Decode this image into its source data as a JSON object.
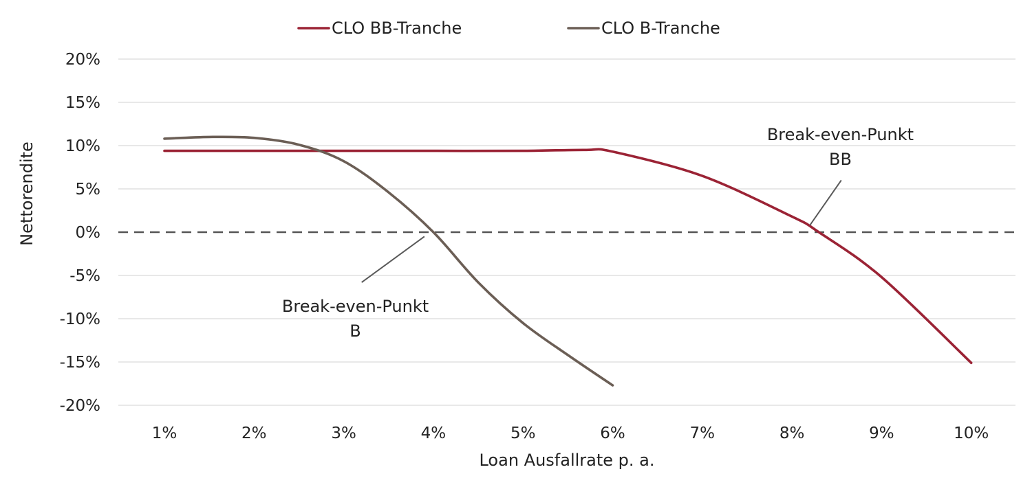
{
  "chart_data": {
    "type": "line",
    "title": "",
    "xlabel": "Loan Ausfallrate p. a.",
    "ylabel": "Nettorendite",
    "categories": [
      "1%",
      "2%",
      "3%",
      "4%",
      "5%",
      "6%",
      "7%",
      "8%",
      "9%",
      "10%"
    ],
    "x_values": [
      1,
      2,
      3,
      4,
      5,
      6,
      7,
      8,
      9,
      10
    ],
    "ylim": [
      -20,
      20
    ],
    "y_ticks": [
      20,
      15,
      10,
      5,
      0,
      -5,
      -10,
      -15,
      -20
    ],
    "y_tick_labels": [
      "20%",
      "15%",
      "10%",
      "5%",
      "0%",
      "-5%",
      "-10%",
      "-15%",
      "-20%"
    ],
    "grid": true,
    "reference_line": {
      "y": 0,
      "style": "dashed",
      "color": "#595959"
    },
    "legend_position": "top-center",
    "series": [
      {
        "name": "CLO BB-Tranche",
        "color": "#9b2335",
        "x": [
          1,
          2,
          3,
          4,
          5,
          5.7,
          6,
          7,
          8,
          8.3,
          9,
          10
        ],
        "y": [
          9.4,
          9.4,
          9.4,
          9.4,
          9.4,
          9.5,
          9.3,
          6.5,
          1.8,
          0,
          -5.2,
          -15.1
        ]
      },
      {
        "name": "CLO B-Tranche",
        "color": "#6b5e55",
        "x": [
          1,
          1.5,
          2,
          2.5,
          3,
          3.5,
          4,
          4.5,
          5,
          5.5,
          6
        ],
        "y": [
          10.8,
          11.0,
          10.9,
          10.1,
          8.2,
          4.6,
          0,
          -5.8,
          -10.5,
          -14.2,
          -17.7
        ]
      }
    ],
    "annotations": [
      {
        "lines": [
          "Break-even-Punkt",
          "B"
        ],
        "target_x": 3.9,
        "target_y": -0.5,
        "label_x": 3.2,
        "label_y": -5.8
      },
      {
        "lines": [
          "Break-even-Punkt",
          "BB"
        ],
        "target_x": 8.2,
        "target_y": 0.8,
        "label_x": 8.55,
        "label_y": 6
      }
    ]
  }
}
